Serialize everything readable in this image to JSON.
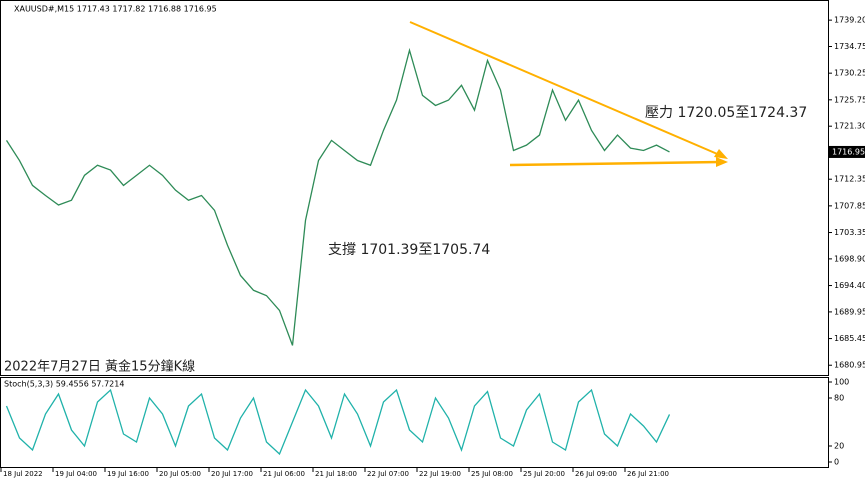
{
  "chart_data": {
    "type": "line",
    "header": "XAUUSD#,M15  1717.43 1717.82 1716.88 1716.95",
    "annotations": [
      "壓力 1720.05至1724.37",
      "支撐 1701.39至1705.74",
      "2022年7月27日 黃金15分鐘K線"
    ],
    "categories": [
      "18 Jul 2022",
      null,
      null,
      null,
      "19 Jul 04:00",
      null,
      null,
      null,
      "19 Jul 16:00",
      null,
      null,
      null,
      "20 Jul 05:00",
      null,
      null,
      null,
      "20 Jul 17:00",
      null,
      null,
      null,
      "21 Jul 06:00",
      null,
      null,
      null,
      "21 Jul 18:00",
      null,
      null,
      null,
      "22 Jul 07:00",
      null,
      null,
      null,
      "22 Jul 19:00",
      null,
      null,
      null,
      "25 Jul 08:00",
      null,
      null,
      null,
      "25 Jul 20:00",
      null,
      null,
      null,
      "26 Jul 09:00",
      null,
      null,
      null,
      "26 Jul 21:00",
      null,
      null,
      null,
      null,
      null,
      null,
      null,
      null,
      null,
      null,
      null,
      null,
      null,
      null
    ],
    "series": [
      {
        "color": "#2e8b57",
        "values": [
          1718.9,
          1715.5,
          1711.3,
          1709.6,
          1708.0,
          1708.8,
          1713.0,
          1714.7,
          1713.9,
          1711.3,
          1713.0,
          1714.7,
          1713.0,
          1710.5,
          1708.8,
          1709.6,
          1707.1,
          1701.2,
          1696.1,
          1693.6,
          1692.7,
          1690.2,
          1684.3,
          1705.4,
          1715.5,
          1718.9,
          1717.2,
          1715.5,
          1714.7,
          1720.6,
          1725.7,
          1734.1,
          1726.5,
          1724.8,
          1725.7,
          1728.2,
          1724.0,
          1732.4,
          1727.4,
          1717.2,
          1718.1,
          1719.8,
          1727.4,
          1722.3,
          1725.7,
          1720.6,
          1717.2,
          1719.8,
          1717.6,
          1717.2,
          1718.1,
          1716.95,
          null,
          null,
          null,
          null,
          null,
          null,
          null,
          null,
          null,
          null,
          null
        ]
      }
    ],
    "ylim": [
      1679.3,
      1742.6
    ],
    "yticks": [
      {
        "value": 1739.2,
        "label": "1739.20"
      },
      1734.75,
      1730.25,
      1725.75,
      {
        "value": 1721.3,
        "label": "1721.30"
      },
      1712.35,
      1707.85,
      1703.35,
      {
        "value": 1698.9,
        "label": "1698.90"
      },
      {
        "value": 1694.4,
        "label": "1694.40"
      },
      1689.95,
      1685.45,
      1680.95
    ],
    "last_price": 1716.95,
    "indicator": {
      "title": "Stoch(5,3,3) 59.4556 57.7214",
      "color": "#20b2aa",
      "values": [
        70,
        30,
        15,
        60,
        85,
        40,
        20,
        75,
        90,
        35,
        25,
        80,
        60,
        20,
        70,
        85,
        30,
        15,
        55,
        80,
        25,
        10,
        50,
        90,
        70,
        30,
        85,
        60,
        20,
        75,
        90,
        40,
        25,
        80,
        55,
        15,
        70,
        88,
        30,
        20,
        65,
        85,
        25,
        15,
        75,
        90,
        35,
        20,
        60,
        45,
        25,
        59.46,
        null,
        null,
        null,
        null,
        null,
        null,
        null,
        null,
        null,
        null,
        null
      ],
      "ylim": [
        -7.5,
        106.25
      ],
      "yticks": [
        100,
        80,
        20,
        0
      ]
    }
  }
}
